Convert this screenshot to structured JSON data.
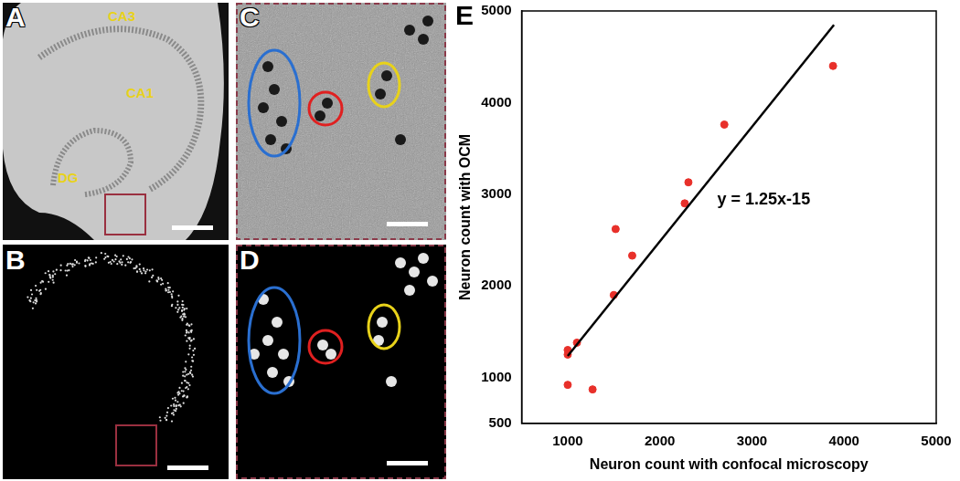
{
  "panels": {
    "A": {
      "label": "A",
      "regions": [
        "CA3",
        "CA1",
        "DG"
      ]
    },
    "B": {
      "label": "B"
    },
    "C": {
      "label": "C"
    },
    "D": {
      "label": "D"
    },
    "E": {
      "label": "E"
    }
  },
  "chart_data": {
    "type": "scatter",
    "xlabel": "Neuron count with confocal microscopy",
    "ylabel": "Neuron count with OCM",
    "x": [
      1000,
      1000,
      1100,
      1000,
      1270,
      1500,
      1520,
      1700,
      2270,
      2310,
      2700,
      3880
    ],
    "values": [
      1300,
      1250,
      1380,
      920,
      870,
      1900,
      2620,
      2330,
      2900,
      3130,
      3760,
      4400
    ],
    "color": "#e8302a",
    "marker": "circle",
    "fit_line": {
      "x": [
        1000,
        3890
      ],
      "values": [
        1235,
        4847.5
      ],
      "color": "#000000",
      "line_style": "solid"
    },
    "annotation": "y = 1.25x-15",
    "xlim": [
      500,
      5000
    ],
    "xticks": [
      1000,
      2000,
      3000,
      4000,
      5000
    ],
    "ylim": [
      500,
      5000
    ],
    "yticks": [
      500,
      1000,
      2000,
      3000,
      4000,
      5000
    ],
    "grid": false
  }
}
